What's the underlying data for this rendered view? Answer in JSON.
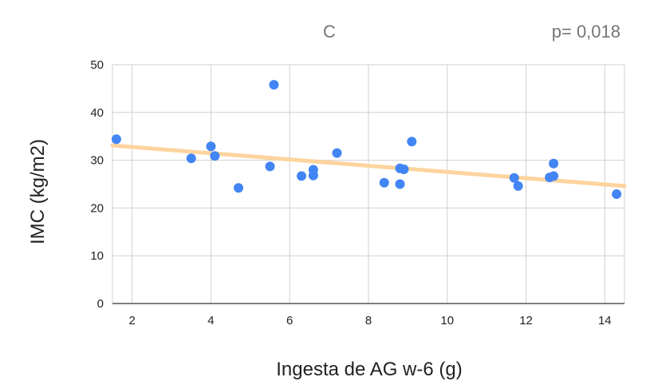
{
  "chart_data": {
    "type": "scatter",
    "title": "C",
    "annotation": "p= 0,018",
    "xlabel": "Ingesta de AG w-6 (g)",
    "ylabel": "IMC (kg/m2)",
    "xlim": [
      1.5,
      14.5
    ],
    "ylim": [
      0,
      50
    ],
    "xticks": [
      2,
      4,
      6,
      8,
      10,
      12,
      14
    ],
    "yticks": [
      0,
      10,
      20,
      30,
      40,
      50
    ],
    "grid": true,
    "series": [
      {
        "color": "#4285f4",
        "points": [
          {
            "x": 1.6,
            "y": 34.4
          },
          {
            "x": 3.5,
            "y": 30.4
          },
          {
            "x": 4.0,
            "y": 32.9
          },
          {
            "x": 4.1,
            "y": 30.9
          },
          {
            "x": 4.7,
            "y": 24.2
          },
          {
            "x": 5.5,
            "y": 28.7
          },
          {
            "x": 5.6,
            "y": 45.8
          },
          {
            "x": 6.3,
            "y": 26.7
          },
          {
            "x": 6.6,
            "y": 28.0
          },
          {
            "x": 6.6,
            "y": 26.8
          },
          {
            "x": 7.2,
            "y": 31.5
          },
          {
            "x": 8.4,
            "y": 25.3
          },
          {
            "x": 8.8,
            "y": 28.3
          },
          {
            "x": 8.8,
            "y": 25.0
          },
          {
            "x": 8.9,
            "y": 28.1
          },
          {
            "x": 9.1,
            "y": 33.9
          },
          {
            "x": 11.7,
            "y": 26.3
          },
          {
            "x": 11.8,
            "y": 24.6
          },
          {
            "x": 12.6,
            "y": 26.4
          },
          {
            "x": 12.7,
            "y": 29.3
          },
          {
            "x": 12.7,
            "y": 26.7
          },
          {
            "x": 14.3,
            "y": 22.9
          }
        ]
      }
    ],
    "trendline": {
      "color": "#fdd49e",
      "x": [
        1.5,
        14.5
      ],
      "y": [
        33.1,
        24.6
      ]
    }
  }
}
